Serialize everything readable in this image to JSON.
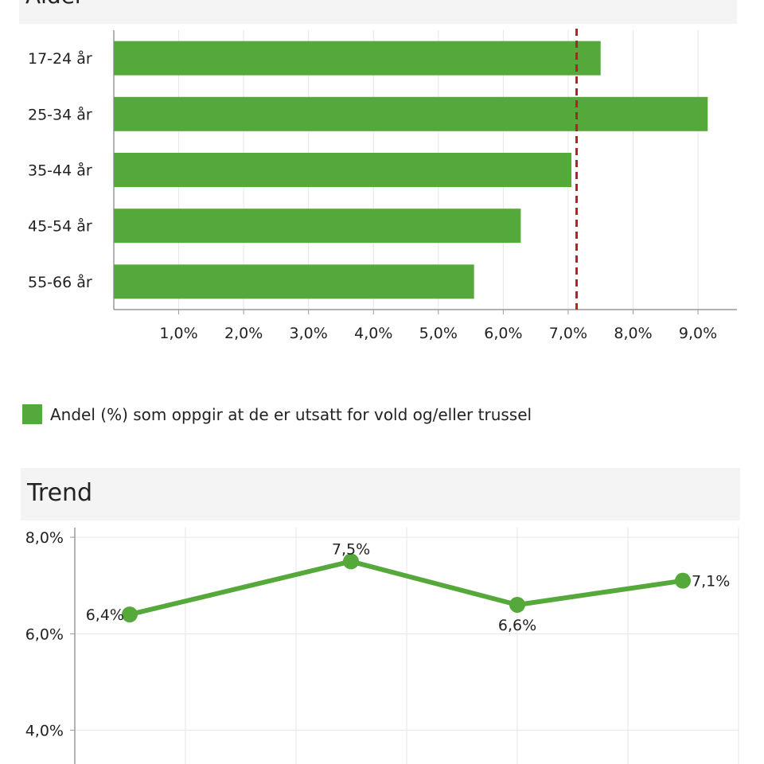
{
  "bar_panel": {
    "title": "Alder",
    "legend": "Andel (%) som oppgir at de er utsatt for vold og/eller trussel"
  },
  "trend_panel": {
    "title": "Trend"
  },
  "colors": {
    "bar": "#55a83a",
    "line": "#55a83a",
    "reference_line": "#b22222",
    "grid": "#e6e6e6",
    "axis": "#999999"
  },
  "chart_data": [
    {
      "type": "bar",
      "orientation": "horizontal",
      "title": "Alder",
      "categories": [
        "17-24 år",
        "25-34 år",
        "35-44 år",
        "45-54 år",
        "55-66 år"
      ],
      "values": [
        7.5,
        9.15,
        7.05,
        6.27,
        5.55
      ],
      "series": [
        {
          "name": "Andel (%) som oppgir at de er utsatt for vold og/eller trussel",
          "values": [
            7.5,
            9.15,
            7.05,
            6.27,
            5.55
          ]
        }
      ],
      "reference_line": 7.13,
      "xlim": [
        0,
        9.6
      ],
      "xticks": [
        1,
        2,
        3,
        4,
        5,
        6,
        7,
        8,
        9
      ],
      "xtick_labels": [
        "1,0%",
        "2,0%",
        "3,0%",
        "4,0%",
        "5,0%",
        "6,0%",
        "7,0%",
        "8,0%",
        "9,0%"
      ],
      "grid": "vertical",
      "legend_position": "bottom-left"
    },
    {
      "type": "line",
      "title": "Trend",
      "values": [
        6.4,
        7.5,
        6.6,
        7.1
      ],
      "data_labels": [
        "6,4%",
        "7,5%",
        "6,6%",
        "7,1%"
      ],
      "ylim": [
        3.3,
        8.2
      ],
      "yticks": [
        4,
        6,
        8
      ],
      "ytick_labels": [
        "4,0%",
        "6,0%",
        "8,0%"
      ],
      "grid": "both"
    }
  ]
}
